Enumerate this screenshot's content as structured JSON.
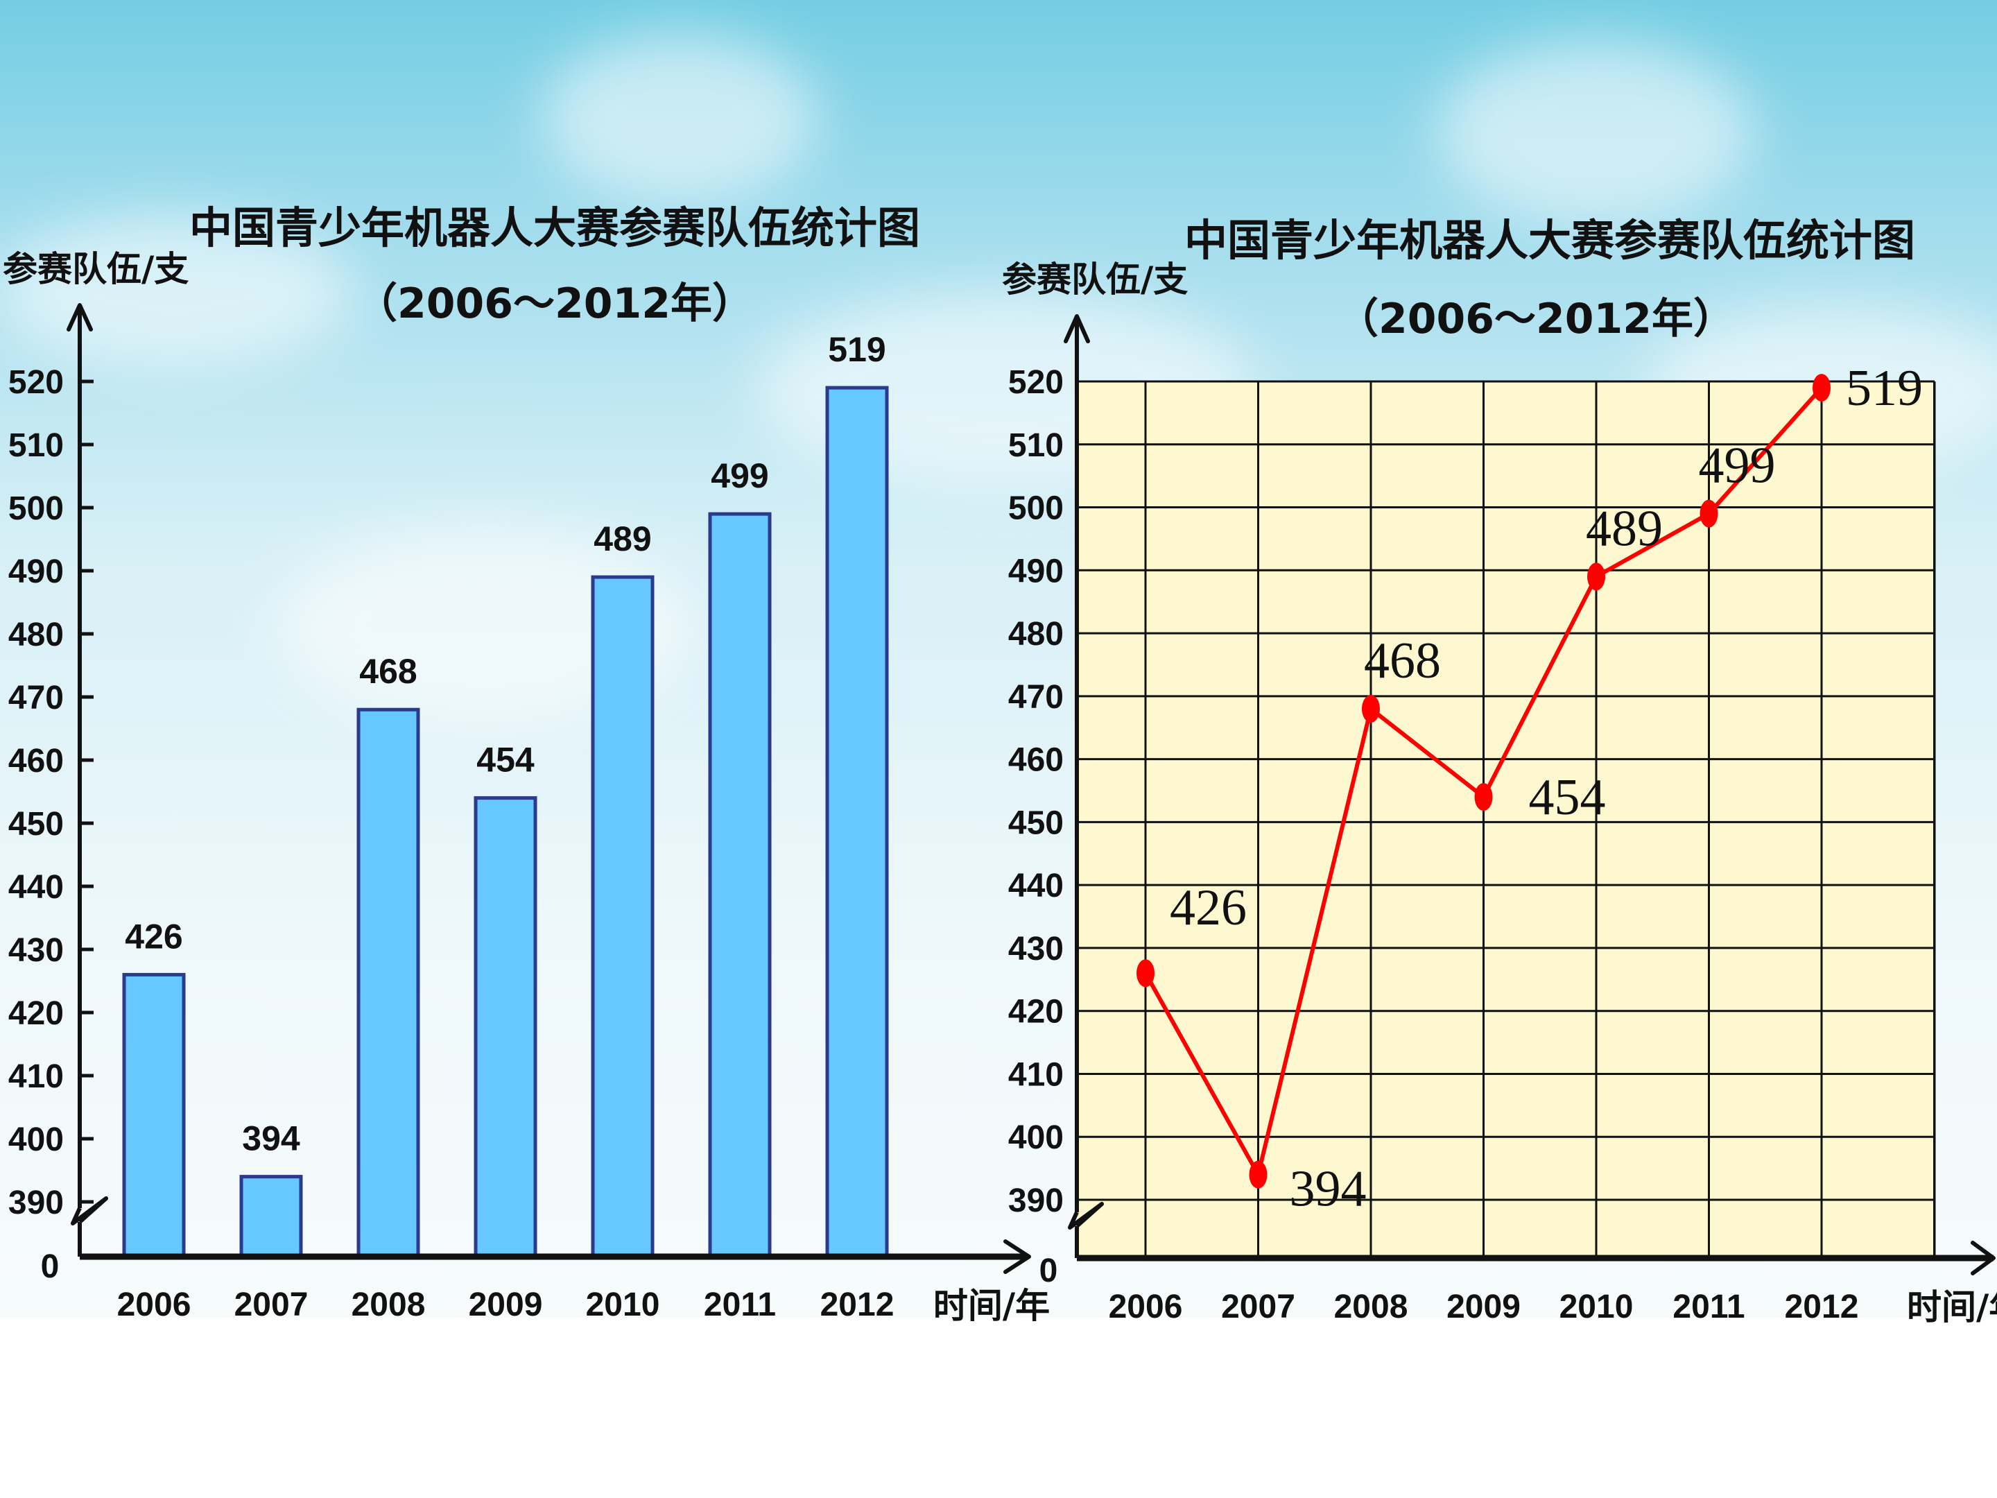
{
  "chart_data": [
    {
      "type": "bar",
      "title": "中国青少年机器人大赛参赛队伍统计图",
      "subtitle": "（2006～2012年）",
      "ylabel": "参赛队伍/支",
      "xlabel": "时间/年",
      "categories": [
        "2006",
        "2007",
        "2008",
        "2009",
        "2010",
        "2011",
        "2012"
      ],
      "values": [
        426,
        394,
        468,
        454,
        489,
        499,
        519
      ],
      "data_labels": [
        "426",
        "394",
        "468",
        "454",
        "489",
        "499",
        "519"
      ],
      "ylim": [
        390,
        520
      ],
      "y_ticks": [
        "520",
        "510",
        "500",
        "490",
        "480",
        "470",
        "460",
        "450",
        "440",
        "430",
        "420",
        "410",
        "400",
        "390"
      ],
      "y_origin_label": "0",
      "axis_break": true,
      "grid": false,
      "bar_color": "#66c8ff"
    },
    {
      "type": "line",
      "title": "中国青少年机器人大赛参赛队伍统计图",
      "subtitle": "（2006～2012年）",
      "ylabel": "参赛队伍/支",
      "xlabel": "时间/年",
      "categories": [
        "2006",
        "2007",
        "2008",
        "2009",
        "2010",
        "2011",
        "2012"
      ],
      "values": [
        426,
        394,
        468,
        454,
        489,
        499,
        519
      ],
      "data_labels": [
        "426",
        "394",
        "468",
        "454",
        "489",
        "499",
        "519"
      ],
      "ylim": [
        390,
        520
      ],
      "y_ticks": [
        "520",
        "510",
        "500",
        "490",
        "480",
        "470",
        "460",
        "450",
        "440",
        "430",
        "420",
        "410",
        "400",
        "390"
      ],
      "y_origin_label": "0",
      "axis_break": true,
      "grid": true,
      "line_color": "#ff0000",
      "plot_background": "#fdf8cf"
    }
  ]
}
